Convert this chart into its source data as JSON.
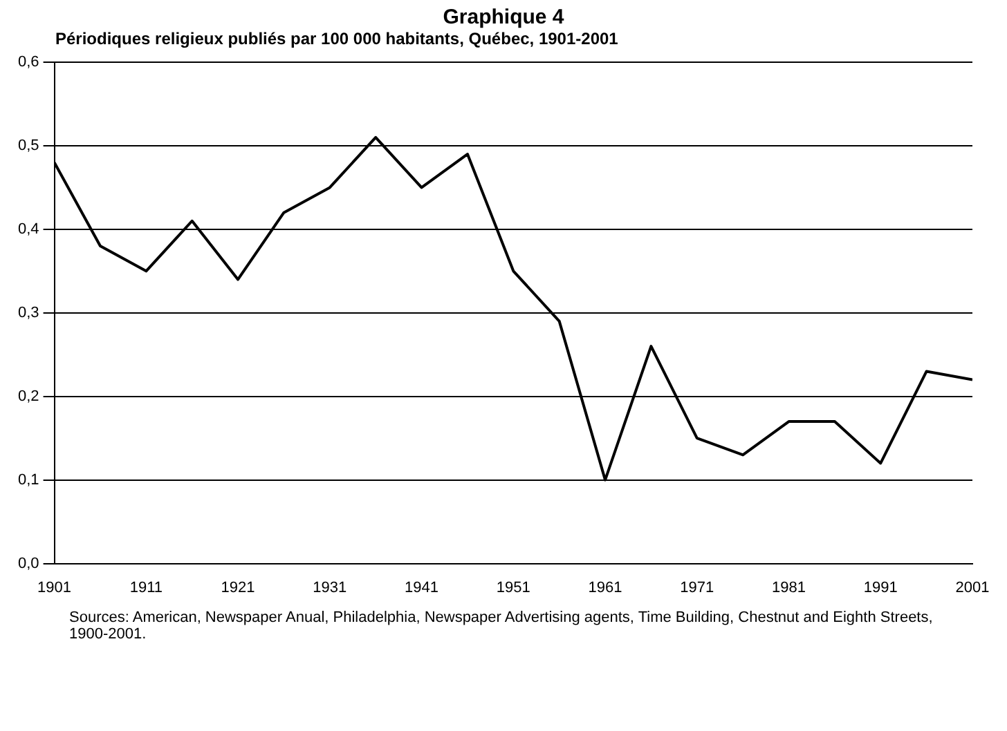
{
  "chart_data": {
    "type": "line",
    "title": "Graphique 4",
    "subtitle": "Périodiques religieux publiés par 100 000 habitants, Québec, 1901-2001",
    "x": [
      1901,
      1906,
      1911,
      1916,
      1921,
      1926,
      1931,
      1936,
      1941,
      1946,
      1951,
      1956,
      1961,
      1966,
      1971,
      1976,
      1981,
      1986,
      1991,
      1996,
      2001
    ],
    "series": [
      {
        "color": "#000000",
        "values": [
          0.48,
          0.38,
          0.35,
          0.41,
          0.34,
          0.42,
          0.45,
          0.51,
          0.45,
          0.49,
          0.35,
          0.29,
          0.1,
          0.26,
          0.15,
          0.13,
          0.17,
          0.17,
          0.12,
          0.23,
          0.22
        ]
      }
    ],
    "xlim": [
      1901,
      2001
    ],
    "xticks": [
      1901,
      1911,
      1921,
      1931,
      1941,
      1951,
      1961,
      1971,
      1981,
      1991,
      2001
    ],
    "ylim": [
      0,
      0.6
    ],
    "yticks": [
      {
        "value": 0,
        "label": "0,0"
      },
      {
        "value": 0.1,
        "label": "0,1"
      },
      {
        "value": 0.2,
        "label": "0,2"
      },
      {
        "value": 0.3,
        "label": "0,3"
      },
      {
        "value": 0.4,
        "label": "0,4"
      },
      {
        "value": 0.5,
        "label": "0,5"
      },
      {
        "value": 0.6,
        "label": "0,6"
      }
    ],
    "grid": "y",
    "legend": false,
    "marker": "none",
    "line_style": "solid",
    "annotations": [
      "Sources: American, Newspaper Anual, Philadelphia, Newspaper Advertising agents, Time Building, Chestnut and Eighth Streets, 1900-2001."
    ]
  }
}
